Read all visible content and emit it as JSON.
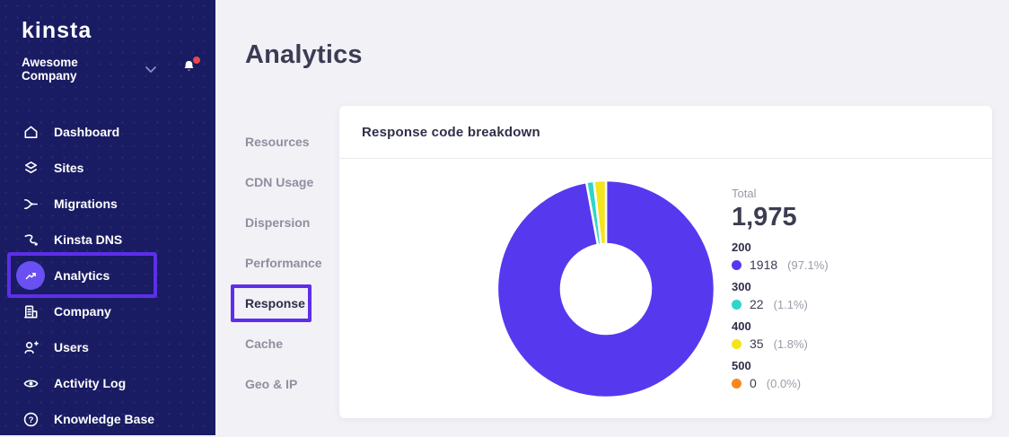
{
  "sidebar": {
    "logo_text": "kinsta",
    "company_name": "Awesome Company",
    "notification_dot": true,
    "nav": [
      {
        "label": "Dashboard",
        "icon": "home-icon"
      },
      {
        "label": "Sites",
        "icon": "layers-icon"
      },
      {
        "label": "Migrations",
        "icon": "merge-icon"
      },
      {
        "label": "Kinsta DNS",
        "icon": "route-icon"
      },
      {
        "label": "Analytics",
        "icon": "trend-up-icon",
        "active": true
      },
      {
        "label": "Company",
        "icon": "building-icon"
      },
      {
        "label": "Users",
        "icon": "user-plus-icon"
      },
      {
        "label": "Activity Log",
        "icon": "eye-icon"
      },
      {
        "label": "Knowledge Base",
        "icon": "help-circle-icon"
      }
    ]
  },
  "page": {
    "title": "Analytics"
  },
  "subnav": {
    "items": [
      {
        "label": "Resources"
      },
      {
        "label": "CDN Usage"
      },
      {
        "label": "Dispersion"
      },
      {
        "label": "Performance"
      },
      {
        "label": "Response",
        "active": true
      },
      {
        "label": "Cache"
      },
      {
        "label": "Geo & IP"
      }
    ]
  },
  "card": {
    "title": "Response code breakdown"
  },
  "chart_data": {
    "type": "donut",
    "title": "Response code breakdown",
    "total_label": "Total",
    "total_value": "1,975",
    "total": 1975,
    "start_angle_deg": 0,
    "direction": "clockwise-from-top",
    "inner_radius_ratio": 0.4,
    "legend_position": "right",
    "series": [
      {
        "label": "200",
        "value": 1918,
        "percent": "(97.1%)",
        "color": "#5639ee"
      },
      {
        "label": "300",
        "value": 22,
        "percent": "(1.1%)",
        "color": "#2fd5c8"
      },
      {
        "label": "400",
        "value": 35,
        "percent": "(1.8%)",
        "color": "#f2e41d"
      },
      {
        "label": "500",
        "value": 0,
        "percent": "(0.0%)",
        "color": "#f6871f"
      }
    ]
  },
  "colors": {
    "sidebar_bg": "#191c62",
    "accent_purple": "#5639ee",
    "annotation_purple": "#5e2eea",
    "notification_red": "#e8484d"
  }
}
